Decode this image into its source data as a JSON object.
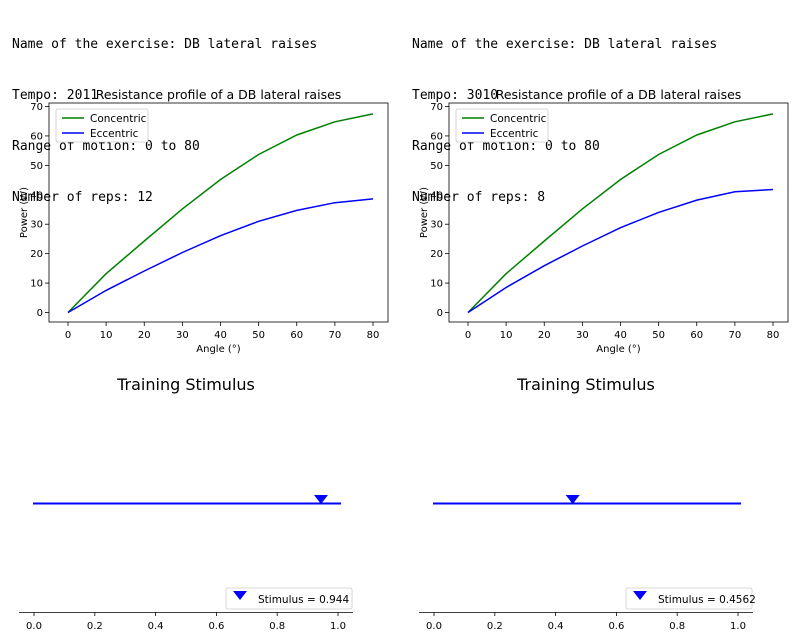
{
  "panels": [
    {
      "exercise_line": "Name of the exercise: DB lateral raises",
      "tempo_line": "Tempo: 2011",
      "range_line": "Range of motion: 0 to 80",
      "reps_line": "Number of reps: 12",
      "stimulus_label": "Stimulus = 0.944"
    },
    {
      "exercise_line": "Name of the exercise: DB lateral raises",
      "tempo_line": "Tempo: 3010",
      "range_line": "Range of motion: 0 to 80",
      "reps_line": "Number of reps: 8",
      "stimulus_label": "Stimulus = 0.4562"
    }
  ],
  "colors": {
    "concentric": "#008000",
    "eccentric": "#0000ff",
    "stimulus": "#0000ff"
  },
  "chart_data": [
    {
      "type": "line",
      "title": "Resistance profile of a DB lateral raises",
      "xlabel": "Angle (°)",
      "ylabel": "Power (W)",
      "xlim": [
        0,
        80
      ],
      "ylim": [
        0,
        70
      ],
      "xticks": [
        0,
        10,
        20,
        30,
        40,
        50,
        60,
        70,
        80
      ],
      "yticks": [
        0,
        10,
        20,
        30,
        40,
        50,
        60,
        70
      ],
      "legend": "top-left",
      "x": [
        0,
        10,
        20,
        30,
        40,
        50,
        60,
        70,
        80
      ],
      "series": [
        {
          "name": "Concentric",
          "values": [
            0,
            13.2,
            24.3,
            35.2,
            45.2,
            53.7,
            60.3,
            64.8,
            67.5
          ]
        },
        {
          "name": "Eccentric",
          "values": [
            0,
            7.5,
            14.1,
            20.4,
            26.1,
            31.0,
            34.7,
            37.3,
            38.6
          ]
        }
      ]
    },
    {
      "type": "line",
      "title": "Resistance profile of a DB lateral raises",
      "xlabel": "Angle (°)",
      "ylabel": "Power (W)",
      "xlim": [
        0,
        80
      ],
      "ylim": [
        0,
        70
      ],
      "xticks": [
        0,
        10,
        20,
        30,
        40,
        50,
        60,
        70,
        80
      ],
      "yticks": [
        0,
        10,
        20,
        30,
        40,
        50,
        60,
        70
      ],
      "legend": "top-left",
      "x": [
        0,
        10,
        20,
        30,
        40,
        50,
        60,
        70,
        80
      ],
      "series": [
        {
          "name": "Concentric",
          "values": [
            0,
            13.2,
            24.3,
            35.2,
            45.2,
            53.7,
            60.3,
            64.8,
            67.5
          ]
        },
        {
          "name": "Eccentric",
          "values": [
            0,
            8.5,
            15.9,
            22.6,
            28.8,
            34.0,
            38.2,
            41.0,
            41.8
          ]
        }
      ]
    },
    {
      "type": "scatter",
      "title": "Training Stimulus",
      "xlim": [
        0,
        1
      ],
      "xticks": [
        "0.0",
        "0.2",
        "0.4",
        "0.6",
        "0.8",
        "1.0"
      ],
      "series": [
        {
          "name": "Stimulus = 0.944",
          "values": [
            0.944
          ]
        }
      ]
    },
    {
      "type": "scatter",
      "title": "Training Stimulus",
      "xlim": [
        0,
        1
      ],
      "xticks": [
        "0.0",
        "0.2",
        "0.4",
        "0.6",
        "0.8",
        "1.0"
      ],
      "series": [
        {
          "name": "Stimulus = 0.4562",
          "values": [
            0.4562
          ]
        }
      ]
    }
  ]
}
